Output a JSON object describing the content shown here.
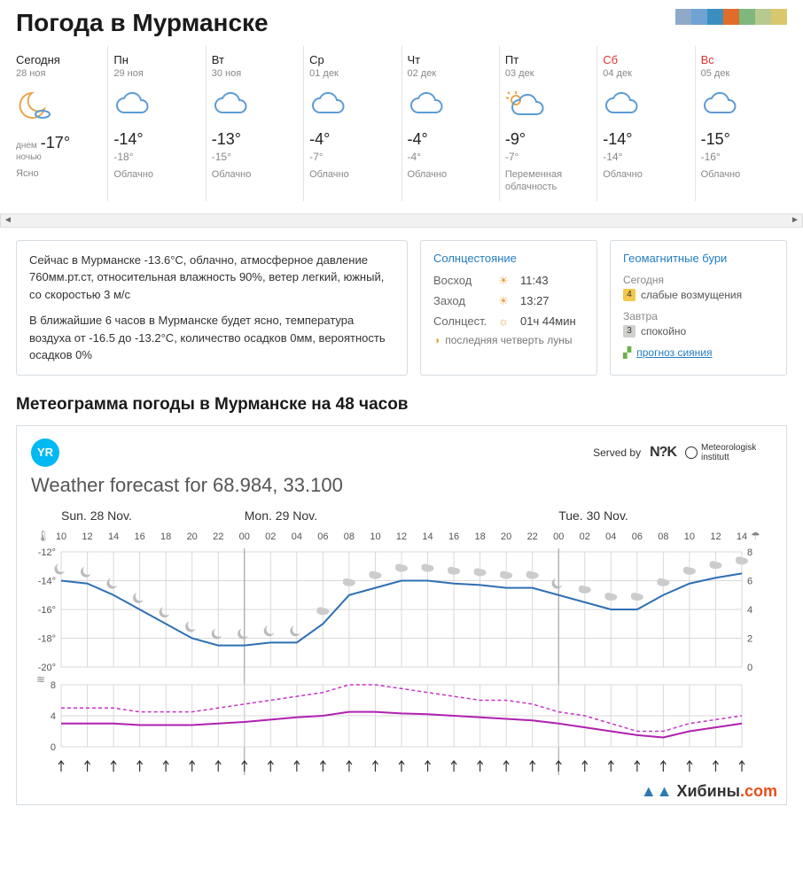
{
  "header": {
    "title": "Погода в Мурманске",
    "tile_colors": [
      "#8fa9c9",
      "#6fa3d4",
      "#3b8fbf",
      "#e06c2a",
      "#80b77d",
      "#b8c98f",
      "#d9c86d"
    ]
  },
  "forecast": [
    {
      "label": "Сегодня",
      "date": "28 ноя",
      "icon": "clear-moon",
      "day_prefix": "днем",
      "day": "-17°",
      "night_prefix": "ночью",
      "night": "",
      "cond": "Ясно",
      "weekend": false
    },
    {
      "label": "Пн",
      "date": "29 ноя",
      "icon": "cloud",
      "day": "-14°",
      "night": "-18°",
      "cond": "Облачно",
      "weekend": false
    },
    {
      "label": "Вт",
      "date": "30 ноя",
      "icon": "cloud",
      "day": "-13°",
      "night": "-15°",
      "cond": "Облачно",
      "weekend": false
    },
    {
      "label": "Ср",
      "date": "01 дек",
      "icon": "cloud",
      "day": "-4°",
      "night": "-7°",
      "cond": "Облачно",
      "weekend": false
    },
    {
      "label": "Чт",
      "date": "02 дек",
      "icon": "cloud",
      "day": "-4°",
      "night": "-4°",
      "cond": "Облачно",
      "weekend": false
    },
    {
      "label": "Пт",
      "date": "03 дек",
      "icon": "sun-cloud",
      "day": "-9°",
      "night": "-7°",
      "cond": "Переменная облачность",
      "weekend": false
    },
    {
      "label": "Сб",
      "date": "04 дек",
      "icon": "cloud",
      "day": "-14°",
      "night": "-14°",
      "cond": "Облачно",
      "weekend": true
    },
    {
      "label": "Вс",
      "date": "05 дек",
      "icon": "cloud",
      "day": "-15°",
      "night": "-16°",
      "cond": "Облачно",
      "weekend": true
    }
  ],
  "now": {
    "p1": "Сейчас в Мурманске -13.6°C, облачно, атмосферное давление 760мм.рт.ст, относительная влажность 90%, ветер легкий, южный, со скоростью 3 м/с",
    "p2": "В ближайшие 6 часов в Мурманске будет ясно, температура воздуха от -16.5 до -13.2°C, количество осадков 0мм, вероятность осадков 0%"
  },
  "sun": {
    "title": "Солнцестояние",
    "rise_lbl": "Восход",
    "rise": "11:43",
    "set_lbl": "Заход",
    "set": "13:27",
    "dur_lbl": "Солнцест.",
    "dur": "01ч 44мин",
    "moon": "последняя четверть луны"
  },
  "geo": {
    "title": "Геомагнитные бури",
    "today_lbl": "Сегодня",
    "today_level": "4",
    "today_color": "#f2c94c",
    "today_text": "слабые возмущения",
    "tom_lbl": "Завтра",
    "tom_level": "3",
    "tom_color": "#cfd2cc",
    "tom_text": "спокойно",
    "link": "прогноз сияния"
  },
  "meteo": {
    "heading": "Метеограмма погоды в Мурманске на 48 часов",
    "yr": "YR",
    "served": "Served by",
    "nrk": "N?K",
    "mi": "Meteorologisk institutt",
    "title": "Weather forecast for 68.984, 33.100",
    "days": [
      "Sun. 28 Nov.",
      "Mon. 29 Nov.",
      "Tue. 30 Nov."
    ],
    "hours": [
      10,
      12,
      14,
      16,
      18,
      20,
      22,
      0,
      2,
      4,
      6,
      8,
      10,
      12,
      14,
      16,
      18,
      20,
      22,
      0,
      2,
      4,
      6,
      8,
      10,
      12,
      14
    ],
    "temp_chart": {
      "type": "line",
      "y_ticks": [
        -12,
        -14,
        -16,
        -18,
        -20
      ],
      "y_label_precip": [
        0,
        2,
        4,
        6,
        8
      ],
      "y_range": [
        -20,
        -12
      ],
      "line_color": "#2e6fb5",
      "grid_color": "#d9d9d9",
      "temp_values": [
        -14,
        -14.2,
        -15,
        -16,
        -17,
        -18,
        -18.5,
        -18.5,
        -18.3,
        -18.3,
        -17,
        -15,
        -14.5,
        -14,
        -14,
        -14.2,
        -14.3,
        -14.5,
        -14.5,
        -15,
        -15.5,
        -16,
        -16,
        -15,
        -14.2,
        -13.8,
        -13.5
      ],
      "weather_icons_y": -13,
      "weather_icons": [
        "moon",
        "moon",
        "moon",
        "moon",
        "moon",
        "moon",
        "moon",
        "moon",
        "moon",
        "moon",
        "cloud",
        "cloud",
        "cloud",
        "cloud",
        "cloud",
        "cloud",
        "cloud",
        "cloud",
        "cloud",
        "moon",
        "cloud",
        "cloud",
        "cloud",
        "cloud",
        "cloud",
        "cloud",
        "cloud"
      ]
    },
    "wind_chart": {
      "type": "line",
      "y_ticks": [
        0,
        4,
        8
      ],
      "grid_color": "#d9d9d9",
      "gust_color": "#c832c8",
      "gust_dash": "4,3",
      "wind_color": "#b020b0",
      "gust_values": [
        5,
        5,
        5,
        4.5,
        4.5,
        4.5,
        5,
        5.5,
        6,
        6.5,
        7,
        8,
        8,
        7.5,
        7,
        6.5,
        6,
        6,
        5.5,
        4.5,
        4,
        3,
        2,
        2,
        3,
        3.5,
        4
      ],
      "wind_values": [
        3,
        3,
        3,
        2.8,
        2.8,
        2.8,
        3,
        3.2,
        3.5,
        3.8,
        4,
        4.5,
        4.5,
        4.3,
        4.2,
        4,
        3.8,
        3.6,
        3.4,
        3,
        2.5,
        2,
        1.5,
        1.2,
        2,
        2.5,
        3
      ],
      "arrow_dirs": [
        0,
        0,
        0,
        0,
        0,
        0,
        0,
        0,
        0,
        0,
        0,
        0,
        0,
        0,
        0,
        0,
        0,
        0,
        0,
        0,
        0,
        0,
        0,
        0,
        0,
        0,
        0
      ]
    }
  },
  "watermark": {
    "text1": "Хибины",
    "text2": ".com"
  }
}
